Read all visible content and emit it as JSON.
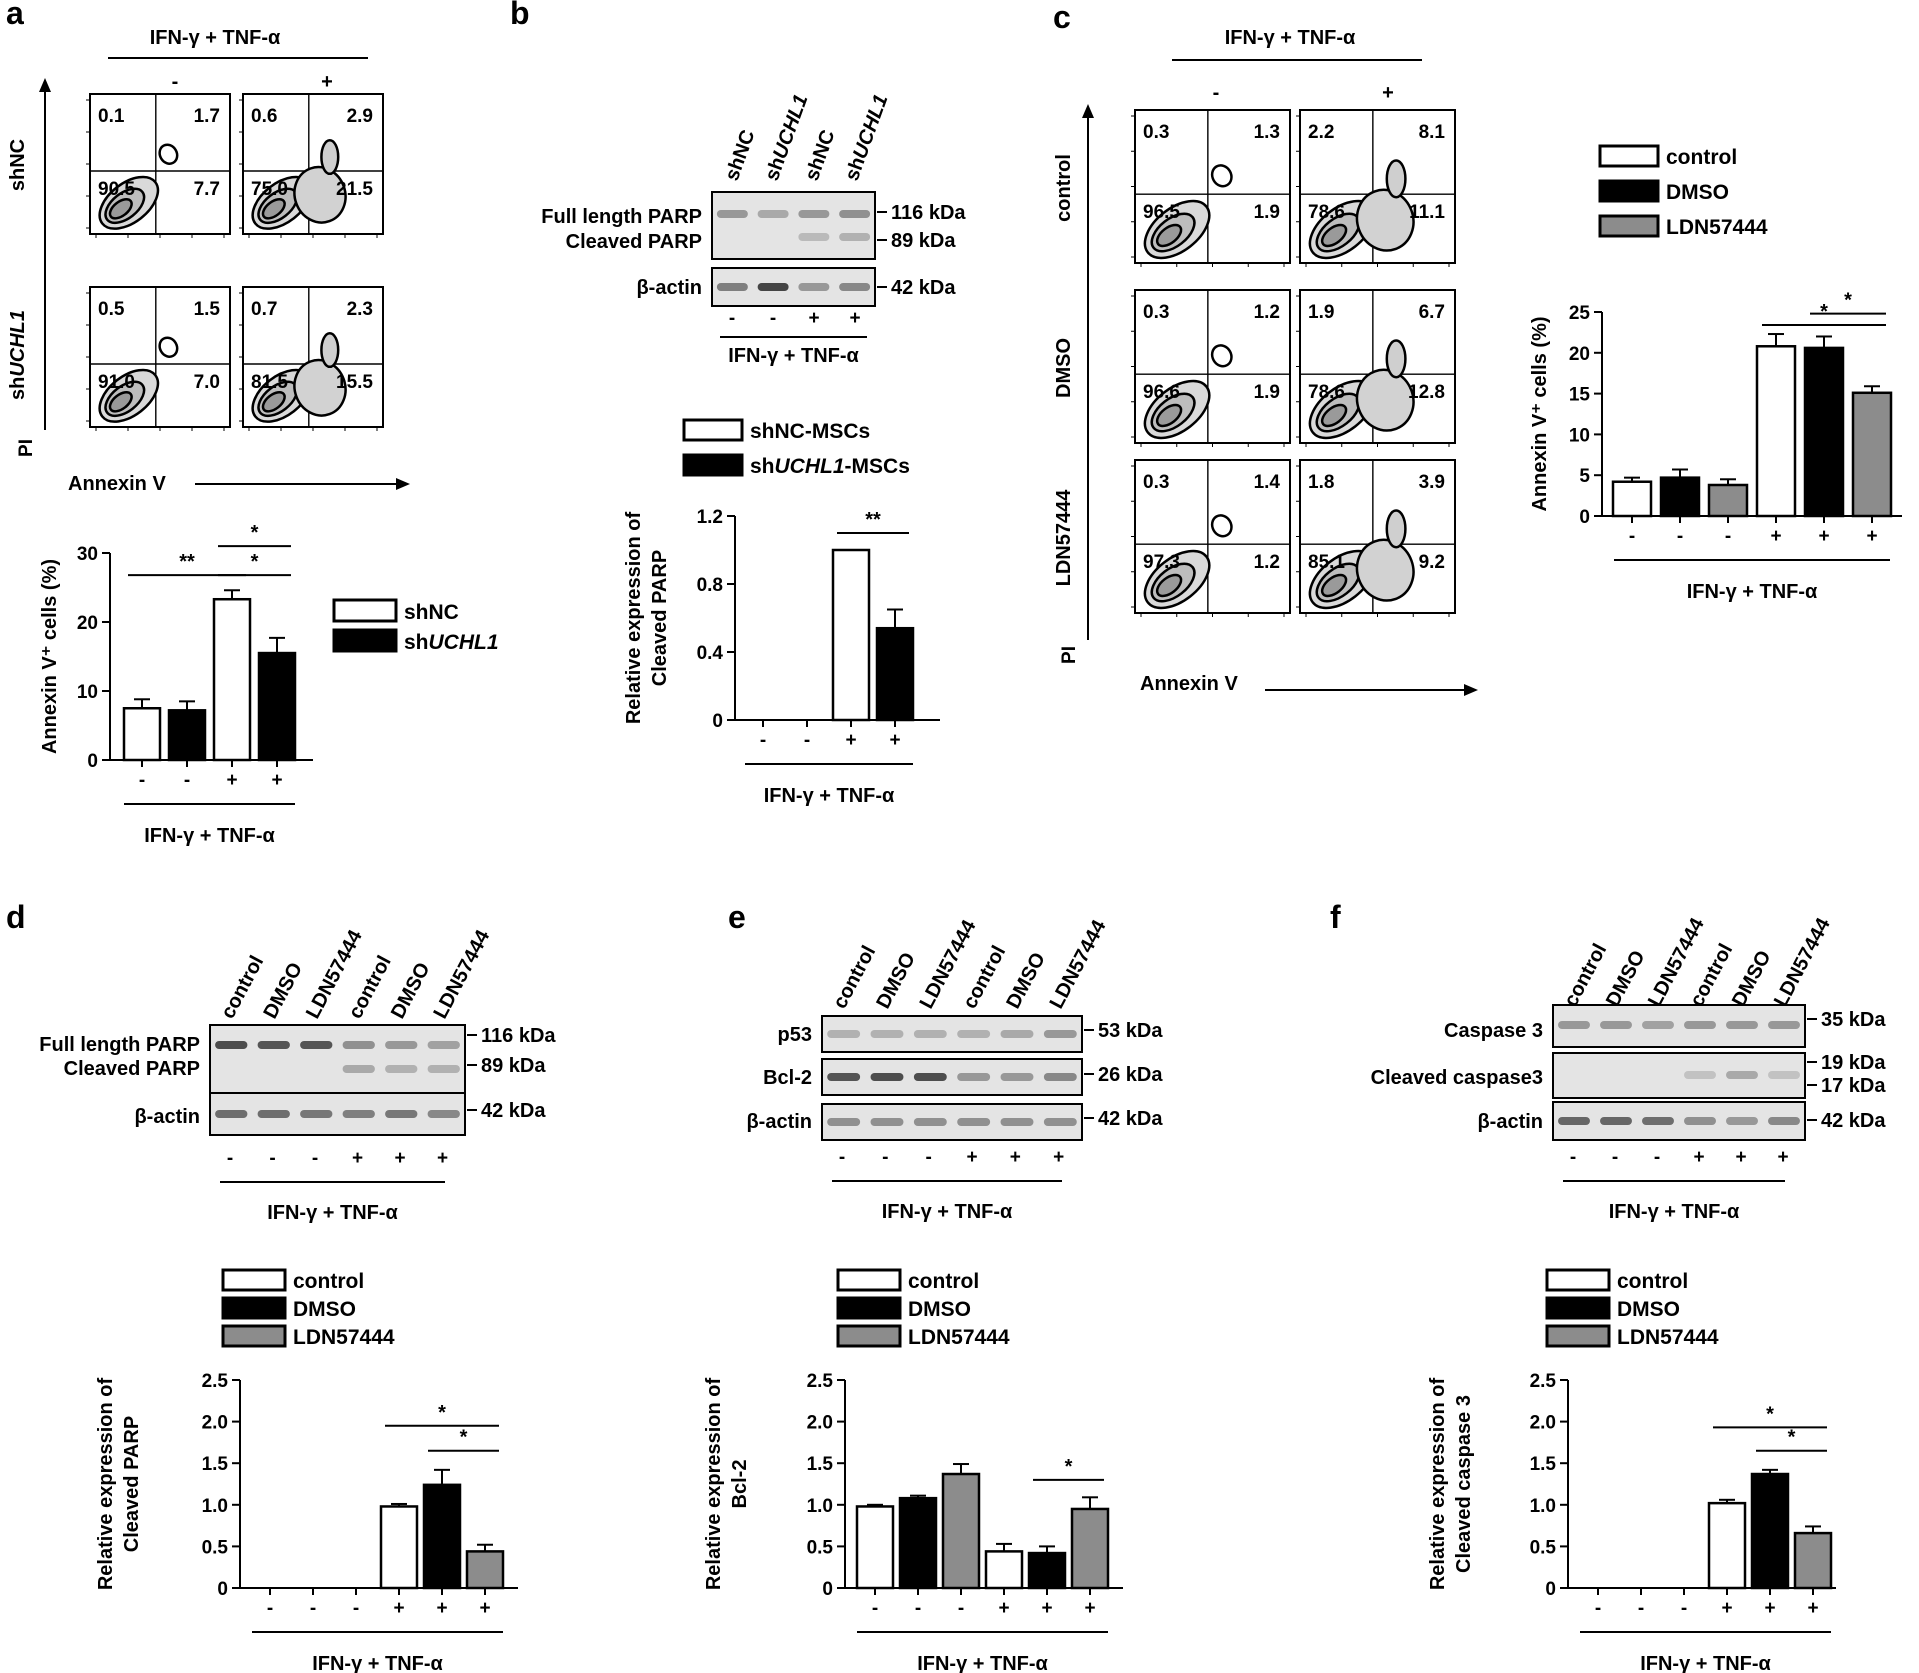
{
  "treatment_label": "IFN-γ + TNF-α",
  "colors": {
    "control": "#ffffff",
    "shNC": "#ffffff",
    "DMSO": "#000000",
    "shUCHL1": "#000000",
    "LDN57444": "#8c8c8c",
    "blot": "#e4e4e4",
    "band": "#3c3c3c"
  },
  "panel_letters": [
    "a",
    "b",
    "c",
    "d",
    "e",
    "f"
  ],
  "panel_a": {
    "flow": {
      "header_minus": "-",
      "header_plus": "+",
      "rows": [
        {
          "label": "shNC",
          "quads": [
            [
              "0.1",
              "1.7",
              "90.5",
              "7.7"
            ],
            [
              "0.6",
              "2.9",
              "75.0",
              "21.5"
            ]
          ]
        },
        {
          "label": "shUCHL1",
          "label_prefix": "sh",
          "label_italic": "UCHL1",
          "quads": [
            [
              "0.5",
              "1.5",
              "91.0",
              "7.0"
            ],
            [
              "0.7",
              "2.3",
              "81.5",
              "15.5"
            ]
          ]
        }
      ],
      "y_axis": "PI",
      "x_axis": "Annexin V"
    },
    "legend": [
      {
        "prefix": "shNC",
        "italic": ""
      },
      {
        "prefix": "sh",
        "italic": "UCHL1"
      }
    ]
  },
  "panel_b": {
    "lanes": [
      {
        "prefix": "shNC",
        "italic": ""
      },
      {
        "prefix": "sh",
        "italic": "UCHL1"
      },
      {
        "prefix": "shNC",
        "italic": ""
      },
      {
        "prefix": "sh",
        "italic": "UCHL1"
      }
    ],
    "labels": [
      "Full length PARP",
      "Cleaved PARP",
      "β-actin"
    ],
    "markers": [
      "116 kDa",
      "89 kDa",
      "42 kDa"
    ],
    "signs": [
      "-",
      "-",
      "+",
      "+"
    ],
    "legend": [
      {
        "prefix": "shNC-MSCs",
        "italic": "",
        "suffix": ""
      },
      {
        "prefix": "sh",
        "italic": "UCHL1",
        "suffix": "-MSCs"
      }
    ]
  },
  "panel_c": {
    "flow": {
      "header_minus": "-",
      "header_plus": "+",
      "rows": [
        {
          "label": "control",
          "quads": [
            [
              "0.3",
              "1.3",
              "96.5",
              "1.9"
            ],
            [
              "2.2",
              "8.1",
              "78.6",
              "11.1"
            ]
          ]
        },
        {
          "label": "DMSO",
          "quads": [
            [
              "0.3",
              "1.2",
              "96.6",
              "1.9"
            ],
            [
              "1.9",
              "6.7",
              "78.6",
              "12.8"
            ]
          ]
        },
        {
          "label": "LDN57444",
          "quads": [
            [
              "0.3",
              "1.4",
              "97.3",
              "1.2"
            ],
            [
              "1.8",
              "3.9",
              "85.1",
              "9.2"
            ]
          ]
        }
      ],
      "y_axis": "PI",
      "x_axis": "Annexin V"
    },
    "legend": [
      "control",
      "DMSO",
      "LDN57444"
    ]
  },
  "panel_d": {
    "lanes": [
      "control",
      "DMSO",
      "LDN57444",
      "control",
      "DMSO",
      "LDN57444"
    ],
    "labels": [
      "Full length PARP",
      "Cleaved PARP",
      "β-actin"
    ],
    "markers": [
      "116 kDa",
      "89 kDa",
      "42 kDa"
    ],
    "signs": [
      "-",
      "-",
      "-",
      "+",
      "+",
      "+"
    ],
    "legend": [
      "control",
      "DMSO",
      "LDN57444"
    ]
  },
  "panel_e": {
    "lanes": [
      "control",
      "DMSO",
      "LDN57444",
      "control",
      "DMSO",
      "LDN57444"
    ],
    "labels": [
      "p53",
      "Bcl-2",
      "β-actin"
    ],
    "markers": [
      "53 kDa",
      "26 kDa",
      "42 kDa"
    ],
    "signs": [
      "-",
      "-",
      "-",
      "+",
      "+",
      "+"
    ],
    "legend": [
      "control",
      "DMSO",
      "LDN57444"
    ]
  },
  "panel_f": {
    "lanes": [
      "control",
      "DMSO",
      "LDN57444",
      "control",
      "DMSO",
      "LDN57444"
    ],
    "labels": [
      "Caspase 3",
      "Cleaved caspase3",
      "β-actin"
    ],
    "markers": [
      "35 kDa",
      "19 kDa",
      "17 kDa",
      "42 kDa"
    ],
    "signs": [
      "-",
      "-",
      "-",
      "+",
      "+",
      "+"
    ],
    "legend": [
      "control",
      "DMSO",
      "LDN57444"
    ]
  },
  "chart_data": [
    {
      "id": "a",
      "type": "bar",
      "ylabel": "Annexin V⁺ cells (%)",
      "xlabel": "IFN-γ + TNF-α",
      "ylim": [
        0,
        30
      ],
      "yticks": [
        "0",
        "10",
        "20",
        "30"
      ],
      "categories": [
        "-",
        "-",
        "+",
        "+"
      ],
      "groups": [
        "shNC",
        "shUCHL1",
        "shNC",
        "shUCHL1"
      ],
      "values": [
        7.5,
        7.2,
        23.3,
        15.5
      ],
      "errors": [
        1.3,
        1.3,
        1.3,
        2.2
      ],
      "significance": [
        "**",
        "*",
        "*"
      ]
    },
    {
      "id": "b",
      "type": "bar",
      "ylabel": [
        "Relative expression of",
        "Cleaved PARP"
      ],
      "xlabel": "IFN-γ + TNF-α",
      "ylim": [
        0,
        1.2
      ],
      "yticks": [
        "0",
        "0.4",
        "0.8",
        "1.2"
      ],
      "categories": [
        "-",
        "-",
        "+",
        "+"
      ],
      "groups": [
        "shNC",
        "shUCHL1",
        "shNC",
        "shUCHL1"
      ],
      "values": [
        0,
        0,
        1.0,
        0.54
      ],
      "errors": [
        0,
        0,
        0,
        0.11
      ],
      "significance": [
        "**"
      ]
    },
    {
      "id": "c",
      "type": "bar",
      "ylabel": "Annexin V⁺ cells (%)",
      "xlabel": "IFN-γ + TNF-α",
      "ylim": [
        0,
        25
      ],
      "yticks": [
        "0",
        "5",
        "10",
        "15",
        "20",
        "25"
      ],
      "categories": [
        "-",
        "-",
        "-",
        "+",
        "+",
        "+"
      ],
      "groups": [
        "control",
        "DMSO",
        "LDN57444",
        "control",
        "DMSO",
        "LDN57444"
      ],
      "values": [
        4.2,
        4.7,
        3.8,
        20.8,
        20.6,
        15.1
      ],
      "errors": [
        0.5,
        1.0,
        0.7,
        1.5,
        1.4,
        0.8
      ],
      "significance": [
        "*",
        "*"
      ]
    },
    {
      "id": "d",
      "type": "bar",
      "ylabel": [
        "Relative expression of",
        "Cleaved PARP"
      ],
      "xlabel": "IFN-γ + TNF-α",
      "ylim": [
        0,
        2.5
      ],
      "yticks": [
        "0",
        "0.5",
        "1.0",
        "1.5",
        "2.0",
        "2.5"
      ],
      "categories": [
        "-",
        "-",
        "-",
        "+",
        "+",
        "+"
      ],
      "groups": [
        "control",
        "DMSO",
        "LDN57444",
        "control",
        "DMSO",
        "LDN57444"
      ],
      "values": [
        0,
        0,
        0,
        0.98,
        1.24,
        0.44
      ],
      "errors": [
        0,
        0,
        0,
        0.03,
        0.18,
        0.08
      ],
      "significance": [
        "*",
        "*"
      ]
    },
    {
      "id": "e",
      "type": "bar",
      "ylabel": [
        "Relative expression of",
        "Bcl-2"
      ],
      "xlabel": "IFN-γ + TNF-α",
      "ylim": [
        0,
        2.5
      ],
      "yticks": [
        "0",
        "0.5",
        "1.0",
        "1.5",
        "2.0",
        "2.5"
      ],
      "categories": [
        "-",
        "-",
        "-",
        "+",
        "+",
        "+"
      ],
      "groups": [
        "control",
        "DMSO",
        "LDN57444",
        "control",
        "DMSO",
        "LDN57444"
      ],
      "values": [
        0.98,
        1.08,
        1.37,
        0.44,
        0.42,
        0.95
      ],
      "errors": [
        0.02,
        0.03,
        0.12,
        0.09,
        0.08,
        0.14
      ],
      "significance": [
        "*"
      ]
    },
    {
      "id": "f",
      "type": "bar",
      "ylabel": [
        "Relative expression of",
        "Cleaved caspase 3"
      ],
      "xlabel": "IFN-γ + TNF-α",
      "ylim": [
        0,
        2.5
      ],
      "yticks": [
        "0",
        "0.5",
        "1.0",
        "1.5",
        "2.0",
        "2.5"
      ],
      "categories": [
        "-",
        "-",
        "-",
        "+",
        "+",
        "+"
      ],
      "groups": [
        "control",
        "DMSO",
        "LDN57444",
        "control",
        "DMSO",
        "LDN57444"
      ],
      "values": [
        0,
        0,
        0,
        1.02,
        1.37,
        0.66
      ],
      "errors": [
        0,
        0,
        0,
        0.04,
        0.05,
        0.08
      ],
      "significance": [
        "*",
        "*"
      ]
    }
  ]
}
